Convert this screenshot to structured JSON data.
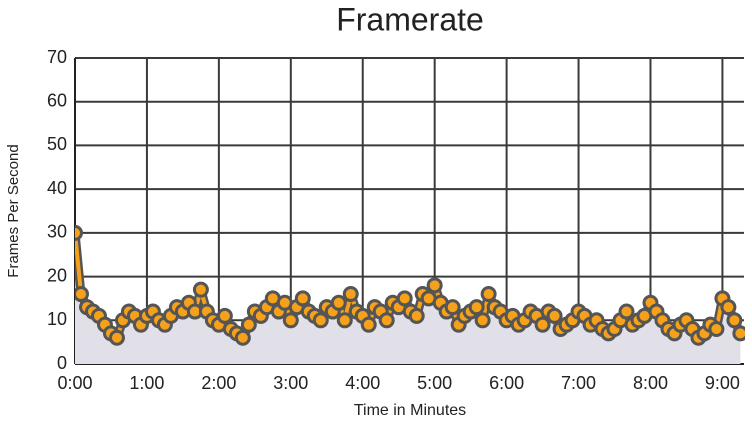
{
  "chart_data": {
    "type": "line",
    "title": "Framerate",
    "x_label": "Time in Minutes",
    "y_label": "Frames Per Second",
    "x": [
      0,
      5,
      10,
      15,
      20,
      25,
      30,
      35,
      40,
      45,
      50,
      55,
      60,
      65,
      70,
      75,
      80,
      85,
      90,
      95,
      100,
      105,
      110,
      115,
      120,
      125,
      130,
      135,
      140,
      145,
      150,
      155,
      160,
      165,
      170,
      175,
      180,
      185,
      190,
      195,
      200,
      205,
      210,
      215,
      220,
      225,
      230,
      235,
      240,
      245,
      250,
      255,
      260,
      265,
      270,
      275,
      280,
      285,
      290,
      295,
      300,
      305,
      310,
      315,
      320,
      325,
      330,
      335,
      340,
      345,
      350,
      355,
      360,
      365,
      370,
      375,
      380,
      385,
      390,
      395,
      400,
      405,
      410,
      415,
      420,
      425,
      430,
      435,
      440,
      445,
      450,
      455,
      460,
      465,
      470,
      475,
      480,
      485,
      490,
      495,
      500,
      505,
      510,
      515,
      520,
      525,
      530,
      535,
      540,
      545,
      550,
      555
    ],
    "series": [
      {
        "name": "Framerate",
        "color": "#f5a11c",
        "values": [
          30,
          16,
          13,
          12,
          11,
          9,
          7,
          6,
          10,
          12,
          11,
          9,
          11,
          12,
          10,
          9,
          11,
          13,
          12,
          14,
          12,
          17,
          12,
          10,
          9,
          11,
          8,
          7,
          6,
          9,
          12,
          11,
          13,
          15,
          12,
          14,
          10,
          13,
          15,
          12,
          11,
          10,
          13,
          12,
          14,
          10,
          16,
          12,
          11,
          9,
          13,
          12,
          10,
          14,
          13,
          15,
          12,
          11,
          16,
          15,
          18,
          14,
          12,
          13,
          9,
          11,
          12,
          13,
          10,
          16,
          13,
          12,
          10,
          11,
          9,
          10,
          12,
          11,
          9,
          12,
          11,
          8,
          9,
          10,
          12,
          11,
          9,
          10,
          8,
          7,
          8,
          10,
          12,
          9,
          10,
          11,
          14,
          12,
          10,
          8,
          7,
          9,
          10,
          8,
          6,
          7,
          9,
          8,
          15,
          13,
          10,
          7
        ]
      }
    ],
    "fill_color": "#e1e0e9",
    "xlim": [
      0,
      558
    ],
    "xticks": [
      {
        "value": 0,
        "label": "0:00"
      },
      {
        "value": 60,
        "label": "1:00"
      },
      {
        "value": 120,
        "label": "2:00"
      },
      {
        "value": 180,
        "label": "3:00"
      },
      {
        "value": 240,
        "label": "4:00"
      },
      {
        "value": 300,
        "label": "5:00"
      },
      {
        "value": 360,
        "label": "6:00"
      },
      {
        "value": 420,
        "label": "7:00"
      },
      {
        "value": 480,
        "label": "8:00"
      },
      {
        "value": 540,
        "label": "9:00"
      }
    ],
    "ylim": [
      0,
      70
    ],
    "yticks": [
      0,
      10,
      20,
      30,
      40,
      50,
      60,
      70
    ],
    "grid": true
  }
}
